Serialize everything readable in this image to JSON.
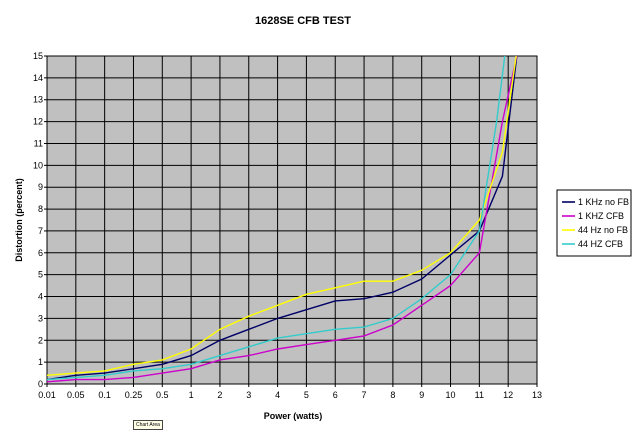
{
  "chart_data": {
    "type": "line",
    "title": "1628SE CFB TEST",
    "xlabel": "Power (watts)",
    "ylabel": "Distortion (percent)",
    "categories": [
      "0.01",
      "0.05",
      "0.1",
      "0.25",
      "0.5",
      "1",
      "2",
      "3",
      "4",
      "5",
      "6",
      "7",
      "8",
      "9",
      "10",
      "11",
      "12",
      "13"
    ],
    "ylim": [
      0,
      15
    ],
    "yticks": [
      0,
      1,
      2,
      3,
      4,
      5,
      6,
      7,
      8,
      9,
      10,
      11,
      12,
      13,
      14,
      15
    ],
    "grid": true,
    "plot_background": "#c0c0c0",
    "legend_position": "right",
    "series": [
      {
        "name": "1 KHz no FB",
        "color": "#000066",
        "points": [
          [
            0,
            0.2
          ],
          [
            1,
            0.4
          ],
          [
            2,
            0.5
          ],
          [
            3,
            0.7
          ],
          [
            4,
            0.9
          ],
          [
            5,
            1.3
          ],
          [
            6,
            2.0
          ],
          [
            7,
            2.5
          ],
          [
            8,
            3.0
          ],
          [
            9,
            3.4
          ],
          [
            10,
            3.8
          ],
          [
            11,
            3.9
          ],
          [
            12,
            4.2
          ],
          [
            13,
            4.8
          ],
          [
            14,
            5.9
          ],
          [
            15,
            7.0
          ],
          [
            15.8,
            9.5
          ],
          [
            16.3,
            15.0
          ]
        ]
      },
      {
        "name": "1 KHZ CFB",
        "color": "#cc00cc",
        "points": [
          [
            0,
            0.1
          ],
          [
            1,
            0.2
          ],
          [
            2,
            0.2
          ],
          [
            3,
            0.3
          ],
          [
            4,
            0.5
          ],
          [
            5,
            0.7
          ],
          [
            6,
            1.1
          ],
          [
            7,
            1.3
          ],
          [
            8,
            1.6
          ],
          [
            9,
            1.8
          ],
          [
            10,
            2.0
          ],
          [
            11,
            2.2
          ],
          [
            12,
            2.7
          ],
          [
            13,
            3.6
          ],
          [
            14,
            4.5
          ],
          [
            15,
            6.0
          ],
          [
            15.8,
            12.0
          ],
          [
            16.3,
            15.0
          ]
        ]
      },
      {
        "name": "44 Hz no FB",
        "color": "#ffff00",
        "points": [
          [
            0,
            0.4
          ],
          [
            1,
            0.5
          ],
          [
            2,
            0.6
          ],
          [
            3,
            0.9
          ],
          [
            4,
            1.1
          ],
          [
            5,
            1.6
          ],
          [
            6,
            2.5
          ],
          [
            7,
            3.1
          ],
          [
            8,
            3.6
          ],
          [
            9,
            4.1
          ],
          [
            10,
            4.4
          ],
          [
            11,
            4.7
          ],
          [
            12,
            4.7
          ],
          [
            13,
            5.2
          ],
          [
            14,
            6.0
          ],
          [
            15,
            7.5
          ],
          [
            15.8,
            10.6
          ],
          [
            16.3,
            15.2
          ]
        ]
      },
      {
        "name": "44 HZ CFB",
        "color": "#33cccc",
        "points": [
          [
            0,
            0.2
          ],
          [
            1,
            0.3
          ],
          [
            2,
            0.4
          ],
          [
            3,
            0.6
          ],
          [
            4,
            0.7
          ],
          [
            5,
            0.9
          ],
          [
            6,
            1.3
          ],
          [
            7,
            1.7
          ],
          [
            8,
            2.1
          ],
          [
            9,
            2.3
          ],
          [
            10,
            2.5
          ],
          [
            11,
            2.6
          ],
          [
            12,
            3.0
          ],
          [
            13,
            3.9
          ],
          [
            14,
            5.0
          ],
          [
            15,
            7.0
          ],
          [
            15.6,
            12.0
          ],
          [
            15.9,
            15.2
          ]
        ]
      }
    ]
  },
  "chart_area_label": "Chart Area"
}
